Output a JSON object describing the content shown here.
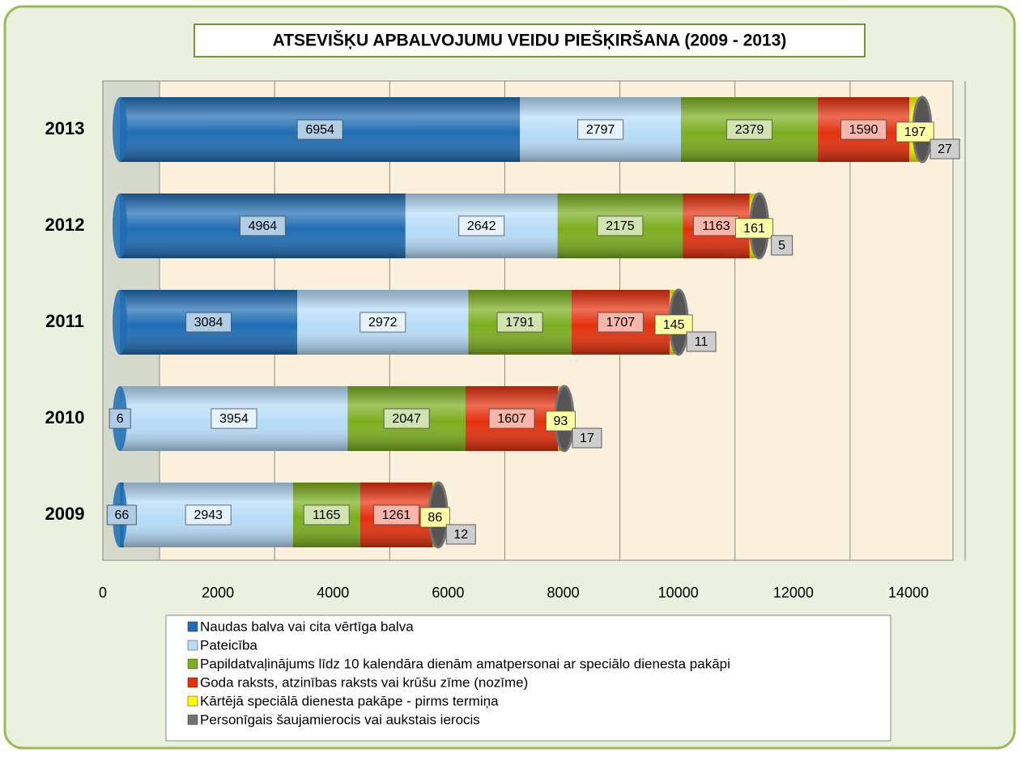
{
  "chart_data": {
    "type": "stacked-bar-horizontal",
    "title": "ATSEVIŠĶU APBALVOJUMU VEIDU PIEŠĶIRŠANA (2009 - 2013)",
    "categories": [
      "2013",
      "2012",
      "2011",
      "2010",
      "2009"
    ],
    "series": [
      {
        "name": "Naudas balva vai cita vērtīga balva",
        "color": "#1f6db4",
        "values": [
          6954,
          4964,
          3084,
          6,
          66
        ]
      },
      {
        "name": "Pateicība",
        "color": "#b7dcf8",
        "values": [
          2797,
          2642,
          2972,
          3954,
          2943
        ]
      },
      {
        "name": "Papildatvaļinājums līdz 10 kalendāra dienām amatpersonai ar speciālo dienesta pakāpi",
        "color": "#7cae1e",
        "values": [
          2379,
          2175,
          1791,
          2047,
          1165
        ]
      },
      {
        "name": "Goda raksts, atzinības raksts vai krūšu zīme (nozīme)",
        "color": "#e5300c",
        "values": [
          1590,
          1163,
          1707,
          1607,
          1261
        ]
      },
      {
        "name": "Kārtējā speciālā dienesta pakāpe - pirms termiņa",
        "color": "#ffff00",
        "values": [
          197,
          161,
          145,
          93,
          86
        ]
      },
      {
        "name": "Personīgais šaujamierocis vai aukstais ierocis",
        "color": "#727272",
        "values": [
          27,
          5,
          11,
          17,
          12
        ]
      }
    ],
    "xlim": [
      0,
      14000
    ],
    "xticks": [
      0,
      2000,
      4000,
      6000,
      8000,
      10000,
      12000,
      14000
    ],
    "grid": true
  }
}
